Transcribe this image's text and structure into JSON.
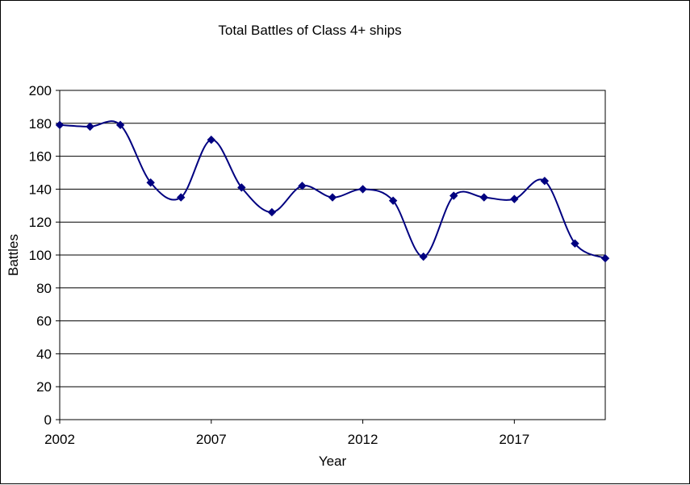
{
  "chart_data": {
    "type": "line",
    "title": "Total Battles of Class 4+ ships",
    "xlabel": "Year",
    "ylabel": "Battles",
    "xlim": [
      2002,
      2020
    ],
    "ylim": [
      0,
      200
    ],
    "x_ticks": [
      "2002",
      "2007",
      "2012",
      "2017"
    ],
    "y_ticks": [
      "0",
      "20",
      "40",
      "60",
      "80",
      "100",
      "120",
      "140",
      "160",
      "180",
      "200"
    ],
    "grid": "horizontal",
    "legend": "none",
    "series": [
      {
        "color": "#000080",
        "marker": "diamond",
        "smooth": true,
        "x": [
          2002,
          2003,
          2004,
          2005,
          2006,
          2007,
          2008,
          2009,
          2010,
          2011,
          2012,
          2013,
          2014,
          2015,
          2016,
          2017,
          2018,
          2019,
          2020
        ],
        "y": [
          179,
          178,
          179,
          144,
          135,
          170,
          141,
          126,
          142,
          135,
          140,
          133,
          99,
          136,
          135,
          134,
          145,
          107,
          98
        ]
      }
    ]
  }
}
